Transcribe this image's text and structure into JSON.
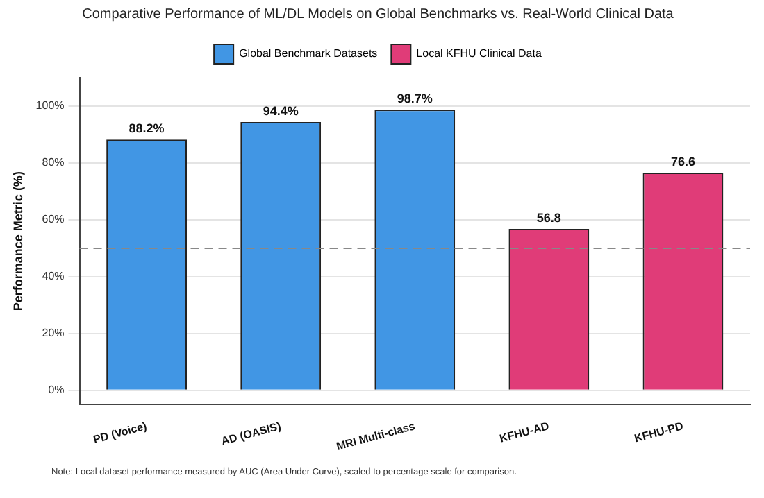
{
  "chart_data": {
    "type": "bar",
    "title": "Comparative Performance of ML/DL Models on Global Benchmarks vs. Real-World Clinical Data",
    "ylabel": "Performance Metric (%)",
    "categories": [
      "PD (Voice)",
      "AD (OASIS)",
      "MRI Multi-class",
      "KFHU-AD",
      "KFHU-PD"
    ],
    "series": [
      {
        "name": "Global Benchmark Datasets",
        "color": "#4196e4",
        "values": [
          88.2,
          94.4,
          98.7,
          null,
          null
        ],
        "value_labels": [
          "88.2%",
          "94.4%",
          "98.7%",
          null,
          null
        ]
      },
      {
        "name": "Local KFHU Clinical Data",
        "color": "#e03c78",
        "values": [
          null,
          null,
          null,
          56.8,
          76.6
        ],
        "value_labels": [
          null,
          null,
          null,
          "56.8",
          "76.6"
        ]
      }
    ],
    "ylim": [
      -5,
      110
    ],
    "yticks": [
      {
        "value": 0,
        "label": "0%"
      },
      {
        "value": 20,
        "label": "20%"
      },
      {
        "value": 40,
        "label": "40%"
      },
      {
        "value": 60,
        "label": "60%"
      },
      {
        "value": 80,
        "label": "80%"
      },
      {
        "value": 100,
        "label": "100%"
      }
    ],
    "grid": "y",
    "legend": "top",
    "ref_lines": [
      {
        "axis": "y",
        "value": 50,
        "color": "#888888",
        "line_style": "dashed"
      }
    ],
    "annotations": [
      "Note: Local dataset performance measured by AUC (Area Under Curve), scaled to percentage scale for comparison."
    ]
  }
}
